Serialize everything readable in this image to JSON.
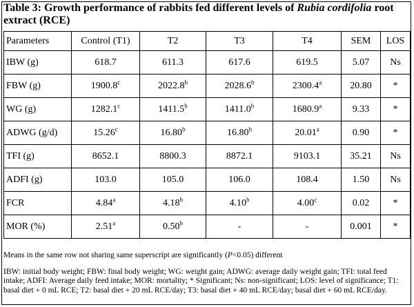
{
  "title_plain": "Table 3: Growth performance of rabbits fed different levels of ",
  "title_italic": "Rubia cordifolia",
  "title_rest": " root extract (RCE)",
  "headers": [
    "Parameters",
    "Control (T1)",
    "T2",
    "T3",
    "T4",
    "SEM",
    "LOS"
  ],
  "rows": [
    {
      "param": "IBW (g)",
      "vals": [
        {
          "v": "618.7",
          "s": ""
        },
        {
          "v": "611.3",
          "s": ""
        },
        {
          "v": "617.6",
          "s": ""
        },
        {
          "v": "619.5",
          "s": ""
        }
      ],
      "sem": "5.07",
      "los": "Ns"
    },
    {
      "param": "FBW (g)",
      "vals": [
        {
          "v": "1900.8",
          "s": "c"
        },
        {
          "v": "2022.8",
          "s": "b"
        },
        {
          "v": "2028.6",
          "s": "b"
        },
        {
          "v": "2300.4",
          "s": "a"
        }
      ],
      "sem": "20.80",
      "los": "*"
    },
    {
      "param": "WG (g)",
      "vals": [
        {
          "v": "1282.1",
          "s": "c"
        },
        {
          "v": "1411.5",
          "s": "b"
        },
        {
          "v": "1411.0",
          "s": "b"
        },
        {
          "v": "1680.9",
          "s": "a"
        }
      ],
      "sem": "9.33",
      "los": "*"
    },
    {
      "param": "ADWG (g/d)",
      "vals": [
        {
          "v": "15.26",
          "s": "c"
        },
        {
          "v": "16.80",
          "s": "b"
        },
        {
          "v": "16.80",
          "s": "b"
        },
        {
          "v": "20.01",
          "s": "a"
        }
      ],
      "sem": "0.90",
      "los": "*"
    },
    {
      "param": "TFI (g)",
      "vals": [
        {
          "v": "8652.1",
          "s": ""
        },
        {
          "v": "8800.3",
          "s": ""
        },
        {
          "v": "8872.1",
          "s": ""
        },
        {
          "v": "9103.1",
          "s": ""
        }
      ],
      "sem": "35.21",
      "los": "Ns"
    },
    {
      "param": "ADFI (g)",
      "vals": [
        {
          "v": "103.0",
          "s": ""
        },
        {
          "v": "105.0",
          "s": ""
        },
        {
          "v": "106.0",
          "s": ""
        },
        {
          "v": "108.4",
          "s": ""
        }
      ],
      "sem": "1.50",
      "los": "Ns"
    },
    {
      "param": "FCR",
      "vals": [
        {
          "v": "4.84",
          "s": "a"
        },
        {
          "v": "4.18",
          "s": "b"
        },
        {
          "v": "4.10",
          "s": "b"
        },
        {
          "v": "4.00",
          "s": "c"
        }
      ],
      "sem": "0.02",
      "los": "*"
    },
    {
      "param": "MOR (%)",
      "vals": [
        {
          "v": "2.51",
          "s": "a"
        },
        {
          "v": "0.50",
          "s": "b"
        },
        {
          "v": "-",
          "s": ""
        },
        {
          "v": "-",
          "s": ""
        }
      ],
      "sem": "0.001",
      "los": "*"
    }
  ],
  "note1_a": "Means in the same row not sharing same superscript are significantly (",
  "note1_p": "P",
  "note1_b": "<0.05) different",
  "note2": "IBW: initial body weight; FBW: final body weight; WG: weight gain; ADWG: average daily weight gain; TFI: total feed intake; ADFI: Average daily feed intake; MOR: mortality; * Significant; Ns: non-significant; LOS: level of significance; T1: basal diet + 0 mL RCE; T2: basal diet + 20 mL RCE/day; T3: basal diet + 40 mL RCE/day; basal diet + 60 mL RCE/day."
}
